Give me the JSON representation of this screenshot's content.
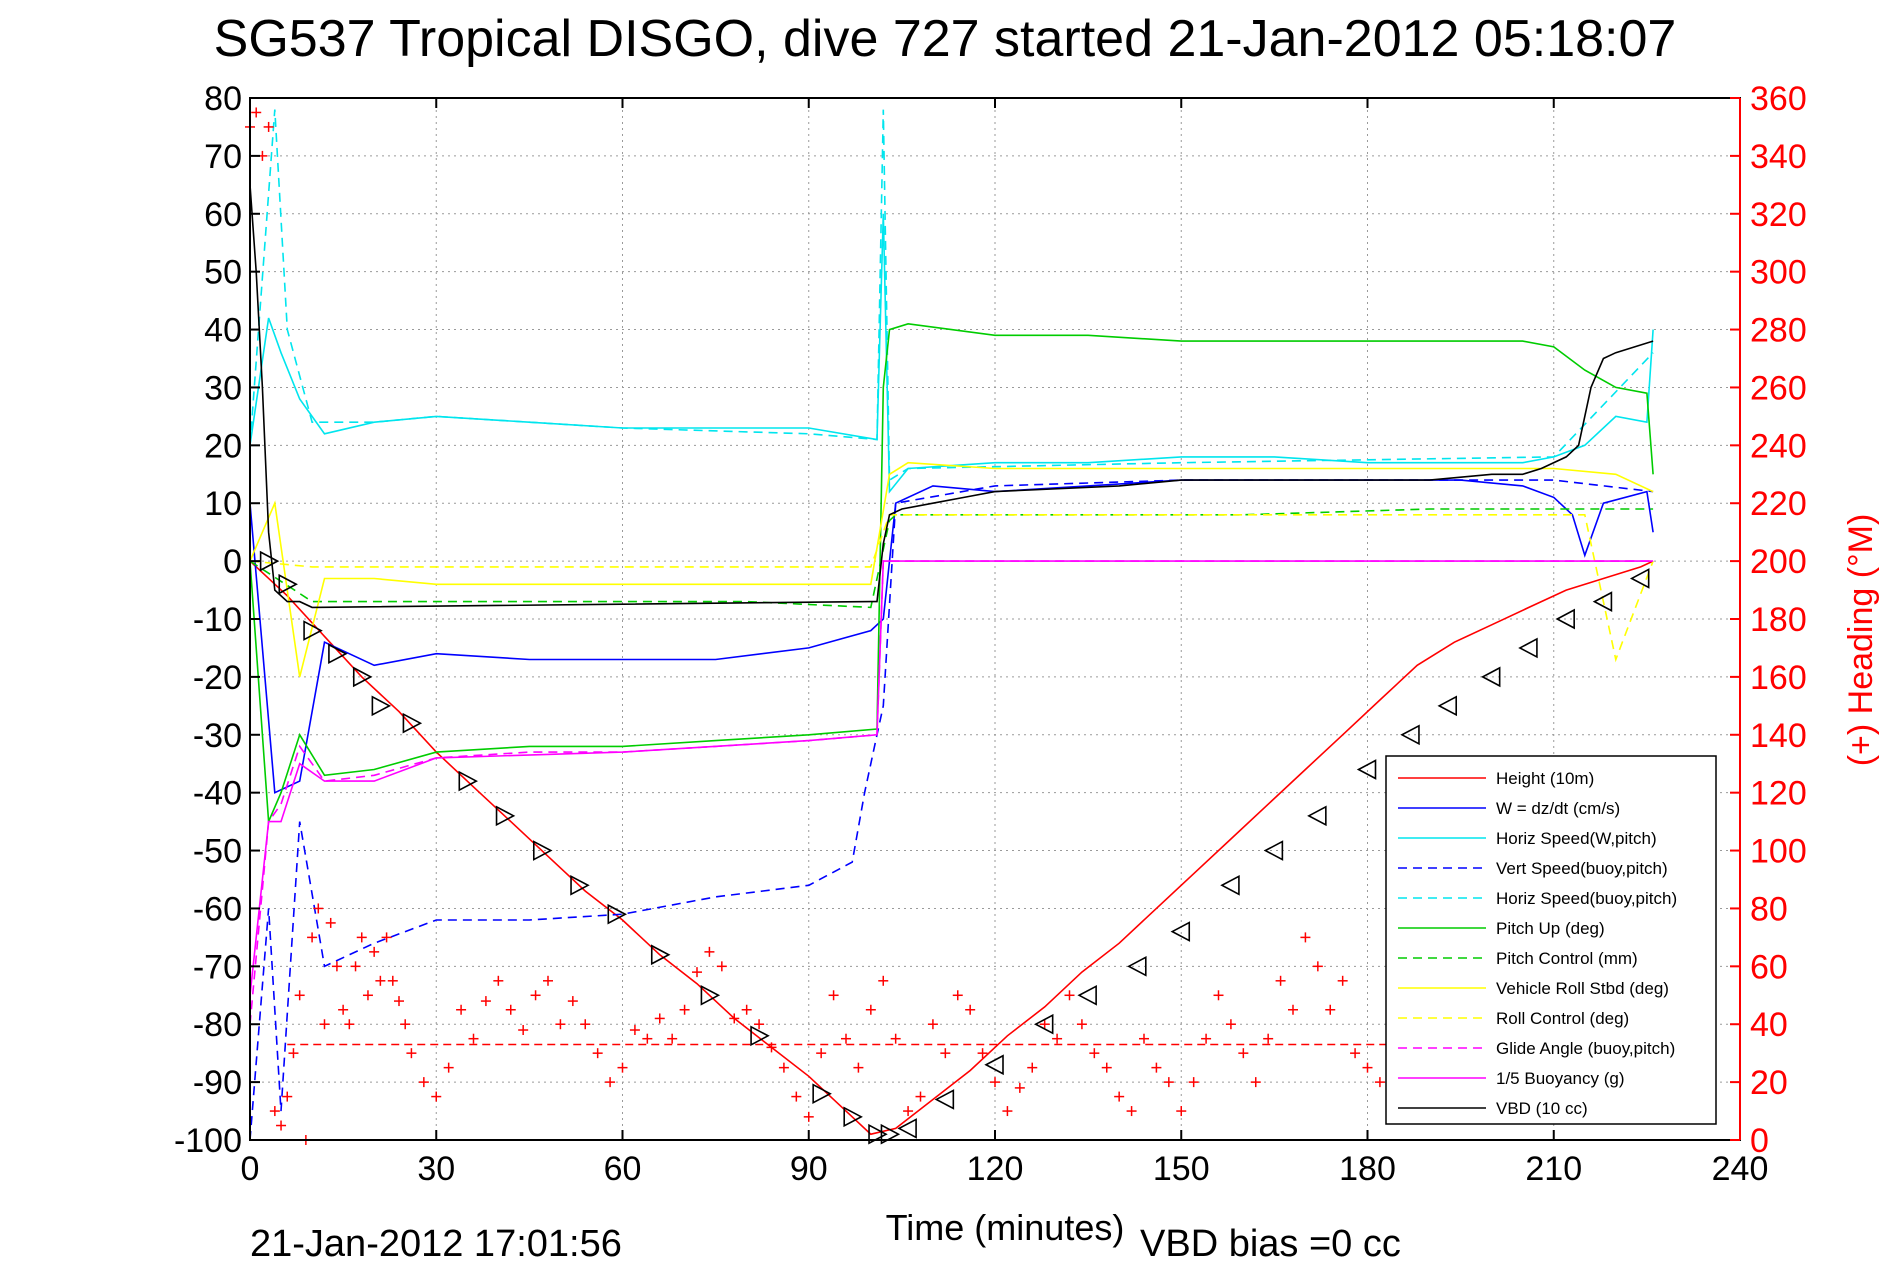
{
  "header": {
    "title": "SG537 Tropical DISGO, dive 727 started 21-Jan-2012 05:18:07"
  },
  "footer": {
    "plot_timestamp": "21-Jan-2012 17:01:56",
    "vbd_bias": "VBD bias =0 cc"
  },
  "chart_data": {
    "type": "line",
    "title": "SG537 Tropical DISGO, dive 727 started 21-Jan-2012 05:18:07",
    "xlabel": "Time (minutes)",
    "ylabel": "",
    "y2label": "(+) Heading (°M)",
    "xlim": [
      0,
      240
    ],
    "ylim": [
      -100,
      80
    ],
    "y2lim": [
      0,
      360
    ],
    "xticks": [
      0,
      30,
      60,
      90,
      120,
      150,
      180,
      210,
      240
    ],
    "yticks": [
      80,
      70,
      60,
      50,
      40,
      30,
      20,
      10,
      0,
      -10,
      -20,
      -30,
      -40,
      -50,
      -60,
      -70,
      -80,
      -90,
      -100
    ],
    "y2ticks": [
      360,
      340,
      320,
      300,
      280,
      260,
      240,
      220,
      200,
      180,
      160,
      140,
      120,
      100,
      80,
      60,
      40,
      20,
      0
    ],
    "grid": true,
    "legend_position": "bottom-right",
    "series": [
      {
        "name": "Height (10m)",
        "color": "#ff0000",
        "style": "solid",
        "x": [
          0,
          6,
          12,
          18,
          24,
          30,
          36,
          42,
          48,
          54,
          60,
          66,
          72,
          78,
          84,
          90,
          96,
          100,
          104,
          110,
          116,
          122,
          128,
          134,
          140,
          146,
          152,
          158,
          164,
          170,
          176,
          182,
          188,
          194,
          200,
          206,
          212,
          218,
          224,
          226
        ],
        "y": [
          0,
          -6,
          -13,
          -20,
          -26,
          -33,
          -39,
          -45,
          -51,
          -57,
          -62,
          -68,
          -73,
          -79,
          -84,
          -89,
          -95,
          -99,
          -98,
          -93,
          -88,
          -82,
          -77,
          -71,
          -66,
          -60,
          -54,
          -48,
          -42,
          -36,
          -30,
          -24,
          -18,
          -14,
          -11,
          -8,
          -5,
          -3,
          -1,
          0
        ]
      },
      {
        "name": "W = dz/dt (cm/s)",
        "color": "#0000ff",
        "style": "solid",
        "x": [
          0,
          4,
          8,
          12,
          20,
          30,
          45,
          60,
          75,
          90,
          100,
          102,
          104,
          110,
          120,
          135,
          150,
          165,
          180,
          195,
          205,
          210,
          213,
          215,
          218,
          225,
          226
        ],
        "y": [
          10,
          -40,
          -38,
          -14,
          -18,
          -16,
          -17,
          -17,
          -17,
          -15,
          -12,
          -10,
          10,
          13,
          12,
          13,
          14,
          14,
          14,
          14,
          13,
          11,
          8,
          1,
          10,
          12,
          5
        ]
      },
      {
        "name": "Horiz Speed(W,pitch)",
        "color": "#00e5ee",
        "style": "solid",
        "x": [
          0,
          3,
          5,
          8,
          12,
          20,
          30,
          45,
          60,
          75,
          90,
          101,
          102,
          103,
          106,
          120,
          135,
          150,
          165,
          180,
          195,
          205,
          210,
          215,
          220,
          225,
          226
        ],
        "y": [
          20,
          42,
          36,
          28,
          22,
          24,
          25,
          24,
          23,
          23,
          23,
          21,
          60,
          12,
          16,
          17,
          17,
          18,
          18,
          17,
          17,
          17,
          18,
          20,
          25,
          24,
          40
        ]
      },
      {
        "name": "Vert Speed(buoy,pitch)",
        "color": "#0000ff",
        "style": "dashed",
        "x": [
          0,
          3,
          5,
          8,
          12,
          20,
          30,
          45,
          60,
          75,
          90,
          97,
          99,
          101,
          102,
          104,
          120,
          150,
          180,
          210,
          226
        ],
        "y": [
          -100,
          -60,
          -95,
          -45,
          -70,
          -66,
          -62,
          -62,
          -61,
          -58,
          -56,
          -52,
          -40,
          -30,
          -25,
          10,
          13,
          14,
          14,
          14,
          12
        ]
      },
      {
        "name": "Horiz Speed(buoy,pitch)",
        "color": "#00e5ee",
        "style": "dashed",
        "x": [
          0,
          4,
          6,
          10,
          20,
          30,
          60,
          90,
          101,
          102,
          103,
          106,
          150,
          210,
          226
        ],
        "y": [
          20,
          78,
          40,
          24,
          24,
          25,
          23,
          22,
          21,
          78,
          14,
          16,
          17,
          18,
          36
        ]
      },
      {
        "name": "Pitch Up (deg)",
        "color": "#00cc00",
        "style": "solid",
        "x": [
          0,
          3,
          5,
          8,
          12,
          20,
          30,
          45,
          60,
          75,
          90,
          101,
          102,
          103,
          106,
          120,
          135,
          150,
          165,
          180,
          195,
          205,
          210,
          215,
          220,
          225,
          226
        ],
        "y": [
          0,
          -45,
          -40,
          -30,
          -37,
          -36,
          -33,
          -32,
          -32,
          -31,
          -30,
          -29,
          30,
          40,
          41,
          39,
          39,
          38,
          38,
          38,
          38,
          38,
          37,
          33,
          30,
          29,
          15
        ]
      },
      {
        "name": "Pitch Control (mm)",
        "color": "#00cc00",
        "style": "dashed",
        "x": [
          0,
          10,
          20,
          40,
          60,
          80,
          100,
          103,
          104,
          130,
          160,
          190,
          226
        ],
        "y": [
          0,
          -7,
          -7,
          -7,
          -7,
          -7,
          -8,
          7,
          8,
          8,
          8,
          9,
          9
        ]
      },
      {
        "name": "Vehicle Roll Stbd (deg)",
        "color": "#ffff00",
        "style": "solid",
        "x": [
          0,
          4,
          8,
          12,
          20,
          30,
          45,
          60,
          75,
          90,
          100,
          103,
          106,
          120,
          135,
          150,
          165,
          180,
          195,
          210,
          220,
          226
        ],
        "y": [
          0,
          10,
          -20,
          -3,
          -3,
          -4,
          -4,
          -4,
          -4,
          -4,
          -4,
          15,
          17,
          16,
          16,
          16,
          16,
          16,
          16,
          16,
          15,
          12
        ]
      },
      {
        "name": "Roll Control (deg)",
        "color": "#ffff00",
        "style": "dashed",
        "x": [
          0,
          10,
          30,
          60,
          90,
          100,
          103,
          130,
          160,
          190,
          215,
          220,
          226
        ],
        "y": [
          0,
          -1,
          -1,
          -1,
          -1,
          -1,
          8,
          8,
          8,
          8,
          8,
          -17,
          0
        ]
      },
      {
        "name": "Glide Angle (buoy,pitch)",
        "color": "#ff00ff",
        "style": "dashed",
        "x": [
          0,
          3,
          5,
          8,
          12,
          20,
          30,
          45,
          60,
          75,
          90,
          101,
          102,
          120,
          160,
          200,
          226
        ],
        "y": [
          -80,
          -45,
          -42,
          -32,
          -38,
          -37,
          -34,
          -33,
          -33,
          -32,
          -31,
          -30,
          0,
          0,
          0,
          0,
          0
        ]
      },
      {
        "name": "1/5 Buoyancy (g)",
        "color": "#ff00ff",
        "style": "solid",
        "x": [
          0,
          3,
          5,
          8,
          12,
          20,
          30,
          60,
          90,
          101,
          102,
          226
        ],
        "y": [
          -75,
          -45,
          -45,
          -35,
          -38,
          -38,
          -34,
          -33,
          -31,
          -30,
          0,
          0
        ]
      },
      {
        "name": "VBD (10 cc)",
        "color": "#000000",
        "style": "solid",
        "x": [
          0,
          1,
          2,
          3,
          4,
          6,
          8,
          10,
          100,
          101,
          102,
          103,
          105,
          110,
          115,
          120,
          140,
          150,
          170,
          190,
          200,
          205,
          208,
          212,
          214,
          216,
          218,
          220,
          226
        ],
        "y": [
          65,
          50,
          30,
          5,
          -5,
          -7,
          -7,
          -8,
          -7,
          -7,
          3,
          8,
          9,
          10,
          11,
          12,
          13,
          14,
          14,
          14,
          15,
          15,
          16,
          18,
          20,
          30,
          35,
          36,
          38
        ]
      }
    ],
    "heading_series": {
      "name": "(+) Heading (°M)",
      "color": "#ff0000",
      "marker": "+",
      "x": [
        0,
        1,
        2,
        3,
        4,
        5,
        6,
        7,
        8,
        9,
        10,
        11,
        12,
        13,
        14,
        15,
        16,
        17,
        18,
        19,
        20,
        21,
        22,
        23,
        24,
        25,
        26,
        28,
        30,
        32,
        34,
        36,
        38,
        40,
        42,
        44,
        46,
        48,
        50,
        52,
        54,
        56,
        58,
        60,
        62,
        64,
        66,
        68,
        70,
        72,
        74,
        76,
        78,
        80,
        82,
        84,
        86,
        88,
        90,
        92,
        94,
        96,
        98,
        100,
        102,
        104,
        106,
        108,
        110,
        112,
        114,
        116,
        118,
        120,
        122,
        124,
        126,
        128,
        130,
        132,
        134,
        136,
        138,
        140,
        142,
        144,
        146,
        148,
        150,
        152,
        154,
        156,
        158,
        160,
        162,
        164,
        166,
        168,
        170,
        172,
        174,
        176,
        178,
        180,
        182,
        184,
        186,
        188,
        190,
        192,
        194,
        196,
        198,
        200,
        202,
        204,
        206,
        208,
        210,
        212,
        214,
        216,
        218,
        220,
        222,
        224
      ],
      "y": [
        350,
        355,
        340,
        350,
        10,
        5,
        15,
        30,
        50,
        0,
        70,
        80,
        40,
        75,
        60,
        45,
        40,
        60,
        70,
        50,
        65,
        55,
        70,
        55,
        48,
        40,
        30,
        20,
        15,
        25,
        45,
        35,
        48,
        55,
        45,
        38,
        50,
        55,
        40,
        48,
        40,
        30,
        20,
        25,
        38,
        35,
        42,
        35,
        45,
        58,
        65,
        60,
        42,
        45,
        40,
        32,
        25,
        15,
        8,
        30,
        50,
        35,
        25,
        45,
        55,
        35,
        10,
        15,
        40,
        30,
        50,
        45,
        30,
        20,
        10,
        18,
        25,
        40,
        35,
        50,
        40,
        30,
        25,
        15,
        10,
        35,
        25,
        20,
        10,
        20,
        35,
        50,
        40,
        30,
        20,
        35,
        55,
        45,
        70,
        60,
        45,
        55,
        30,
        25,
        20,
        28,
        35,
        45,
        40,
        55,
        70,
        80,
        75,
        60,
        65,
        70,
        55,
        60,
        70,
        80,
        75,
        70,
        65,
        60,
        55,
        45
      ]
    },
    "reference_line": {
      "name": "heading reference",
      "color": "#ff0000",
      "style": "dashed",
      "heading_value": 33,
      "x_range": [
        6,
        226
      ]
    },
    "marker_series": {
      "name": "dive markers",
      "color": "#000000",
      "x": [
        3,
        6,
        10,
        14,
        18,
        21,
        26,
        35,
        41,
        47,
        53,
        59,
        66,
        74,
        82,
        92,
        97,
        101,
        103,
        106,
        112,
        120,
        128,
        135,
        143,
        150,
        158,
        165,
        172,
        180,
        187,
        193,
        200,
        206,
        212,
        218,
        224
      ],
      "y": [
        0,
        -4,
        -12,
        -16,
        -20,
        -25,
        -28,
        -38,
        -44,
        -50,
        -56,
        -61,
        -68,
        -75,
        -82,
        -92,
        -96,
        -99,
        -99,
        -98,
        -93,
        -87,
        -80,
        -75,
        -70,
        -64,
        -56,
        -50,
        -44,
        -36,
        -30,
        -25,
        -20,
        -15,
        -10,
        -7,
        -3
      ]
    }
  }
}
